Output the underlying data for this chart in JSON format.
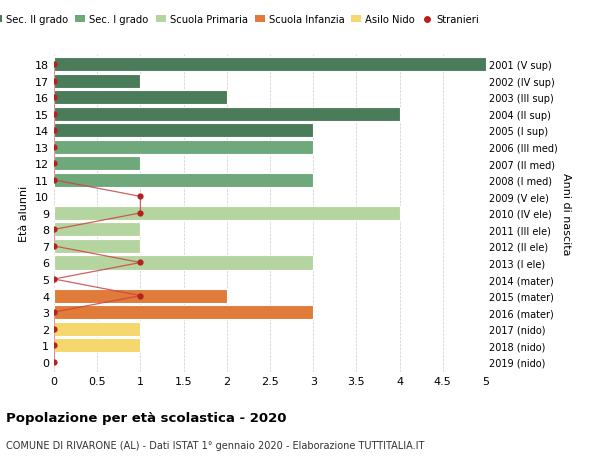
{
  "ages": [
    18,
    17,
    16,
    15,
    14,
    13,
    12,
    11,
    10,
    9,
    8,
    7,
    6,
    5,
    4,
    3,
    2,
    1,
    0
  ],
  "right_labels": [
    "2001 (V sup)",
    "2002 (IV sup)",
    "2003 (III sup)",
    "2004 (II sup)",
    "2005 (I sup)",
    "2006 (III med)",
    "2007 (II med)",
    "2008 (I med)",
    "2009 (V ele)",
    "2010 (IV ele)",
    "2011 (III ele)",
    "2012 (II ele)",
    "2013 (I ele)",
    "2014 (mater)",
    "2015 (mater)",
    "2016 (mater)",
    "2017 (nido)",
    "2018 (nido)",
    "2019 (nido)"
  ],
  "bar_values": [
    5,
    1,
    2,
    4,
    3,
    3,
    1,
    3,
    0,
    4,
    1,
    1,
    3,
    0,
    2,
    3,
    1,
    1,
    0
  ],
  "bar_colors": [
    "#4a7c59",
    "#4a7c59",
    "#4a7c59",
    "#4a7c59",
    "#4a7c59",
    "#6fa87a",
    "#6fa87a",
    "#6fa87a",
    "#b5d5a0",
    "#b5d5a0",
    "#b5d5a0",
    "#b5d5a0",
    "#b5d5a0",
    "#e07b39",
    "#e07b39",
    "#e07b39",
    "#f5d76e",
    "#f5d76e",
    "#f5d76e"
  ],
  "stranieri_values": [
    0,
    0,
    0,
    0,
    0,
    0,
    0,
    0,
    1,
    1,
    0,
    0,
    1,
    0,
    1,
    0,
    0,
    0,
    0
  ],
  "stranieri_color": "#b52020",
  "stranieri_line_color": "#cc4444",
  "legend_labels": [
    "Sec. II grado",
    "Sec. I grado",
    "Scuola Primaria",
    "Scuola Infanzia",
    "Asilo Nido",
    "Stranieri"
  ],
  "legend_colors": [
    "#4a7c59",
    "#6fa87a",
    "#b5d5a0",
    "#e07b39",
    "#f5d76e",
    "#b52020"
  ],
  "title": "Popolazione per età scolastica - 2020",
  "subtitle": "COMUNE DI RIVARONE (AL) - Dati ISTAT 1° gennaio 2020 - Elaborazione TUTTITALIA.IT",
  "ylabel_left": "Età alunni",
  "ylabel_right": "Anni di nascita",
  "xlim": [
    0,
    5.0
  ],
  "xticks": [
    0,
    0.5,
    1.0,
    1.5,
    2.0,
    2.5,
    3.0,
    3.5,
    4.0,
    4.5,
    5.0
  ],
  "bar_height": 0.85,
  "background_color": "#ffffff",
  "grid_color": "#cccccc"
}
